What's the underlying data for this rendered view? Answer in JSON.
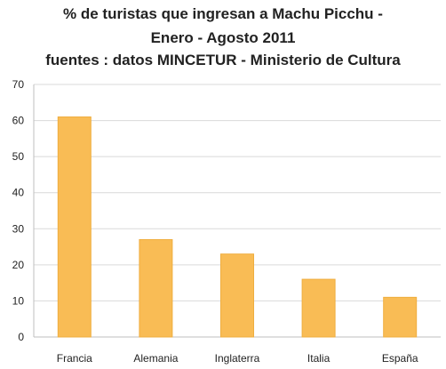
{
  "chart_data": {
    "type": "bar",
    "title_lines": [
      "% de turistas que ingresan a Machu Picchu -",
      "Enero - Agosto 2011",
      "fuentes : datos MINCETUR - Ministerio de Cultura"
    ],
    "categories": [
      "Francia",
      "Alemania",
      "Inglaterra",
      "Italia",
      "España"
    ],
    "values": [
      61,
      27,
      23,
      16,
      11
    ],
    "ylim": [
      0,
      70
    ],
    "yticks": [
      0,
      10,
      20,
      30,
      40,
      50,
      60,
      70
    ],
    "grid": true,
    "legend": "none",
    "bar_color": "#F9BC55",
    "bar_edge_color": "#EFAE40",
    "grid_color": "#D9D9D9"
  }
}
